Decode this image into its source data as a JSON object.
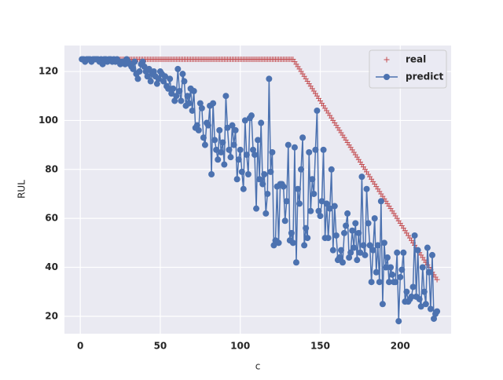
{
  "chart_data": {
    "type": "line",
    "xlabel": "c",
    "ylabel": "RUL",
    "xlim": [
      -9.9,
      231.8
    ],
    "ylim": [
      12.9,
      130.6
    ],
    "xticks": [
      0,
      50,
      100,
      150,
      200
    ],
    "yticks": [
      20,
      40,
      60,
      80,
      100,
      120
    ],
    "grid": true,
    "legend": "upper right",
    "x": [
      1,
      2,
      3,
      4,
      5,
      6,
      7,
      8,
      9,
      10,
      11,
      12,
      13,
      14,
      15,
      16,
      17,
      18,
      19,
      20,
      21,
      22,
      23,
      24,
      25,
      26,
      27,
      28,
      29,
      30,
      31,
      32,
      33,
      34,
      35,
      36,
      37,
      38,
      39,
      40,
      41,
      42,
      43,
      44,
      45,
      46,
      47,
      48,
      49,
      50,
      51,
      52,
      53,
      54,
      55,
      56,
      57,
      58,
      59,
      60,
      61,
      62,
      63,
      64,
      65,
      66,
      67,
      68,
      69,
      70,
      71,
      72,
      73,
      74,
      75,
      76,
      77,
      78,
      79,
      80,
      81,
      82,
      83,
      84,
      85,
      86,
      87,
      88,
      89,
      90,
      91,
      92,
      93,
      94,
      95,
      96,
      97,
      98,
      99,
      100,
      101,
      102,
      103,
      104,
      105,
      106,
      107,
      108,
      109,
      110,
      111,
      112,
      113,
      114,
      115,
      116,
      117,
      118,
      119,
      120,
      121,
      122,
      123,
      124,
      125,
      126,
      127,
      128,
      129,
      130,
      131,
      132,
      133,
      134,
      135,
      136,
      137,
      138,
      139,
      140,
      141,
      142,
      143,
      144,
      145,
      146,
      147,
      148,
      149,
      150,
      151,
      152,
      153,
      154,
      155,
      156,
      157,
      158,
      159,
      160,
      161,
      162,
      163,
      164,
      165,
      166,
      167,
      168,
      169,
      170,
      171,
      172,
      173,
      174,
      175,
      176,
      177,
      178,
      179,
      180,
      181,
      182,
      183,
      184,
      185,
      186,
      187,
      188,
      189,
      190,
      191,
      192,
      193,
      194,
      195,
      196,
      197,
      198,
      199,
      200,
      201,
      202,
      203,
      204,
      205,
      206,
      207,
      208,
      209,
      210,
      211,
      212,
      213,
      214,
      215,
      216,
      217,
      218,
      219,
      220,
      221,
      222,
      223
    ],
    "series": [
      {
        "name": "real",
        "color": "#c44e52",
        "marker": "+",
        "line": false,
        "values": [
          125,
          125,
          125,
          125,
          125,
          125,
          125,
          125,
          125,
          125,
          125,
          125,
          125,
          125,
          125,
          125,
          125,
          125,
          125,
          125,
          125,
          125,
          125,
          125,
          125,
          125,
          125,
          125,
          125,
          125,
          125,
          125,
          125,
          125,
          125,
          125,
          125,
          125,
          125,
          125,
          125,
          125,
          125,
          125,
          125,
          125,
          125,
          125,
          125,
          125,
          125,
          125,
          125,
          125,
          125,
          125,
          125,
          125,
          125,
          125,
          125,
          125,
          125,
          125,
          125,
          125,
          125,
          125,
          125,
          125,
          125,
          125,
          125,
          125,
          125,
          125,
          125,
          125,
          125,
          125,
          125,
          125,
          125,
          125,
          125,
          125,
          125,
          125,
          125,
          125,
          125,
          125,
          125,
          125,
          125,
          125,
          125,
          125,
          125,
          125,
          125,
          125,
          125,
          125,
          125,
          125,
          125,
          125,
          125,
          125,
          125,
          125,
          125,
          125,
          125,
          125,
          125,
          125,
          125,
          125,
          125,
          125,
          125,
          125,
          125,
          125,
          125,
          125,
          125,
          125,
          125,
          125,
          125,
          124,
          123,
          122,
          121,
          120,
          119,
          118,
          117,
          116,
          115,
          114,
          113,
          112,
          111,
          110,
          109,
          108,
          107,
          106,
          105,
          104,
          103,
          102,
          101,
          100,
          99,
          98,
          97,
          96,
          95,
          94,
          93,
          92,
          91,
          90,
          89,
          88,
          87,
          86,
          85,
          84,
          83,
          82,
          81,
          80,
          79,
          78,
          77,
          76,
          75,
          74,
          73,
          72,
          71,
          70,
          69,
          68,
          67,
          66,
          65,
          64,
          63,
          62,
          61,
          60,
          59,
          58,
          57,
          56,
          55,
          54,
          53,
          52,
          51,
          50,
          49,
          48,
          47,
          46,
          45,
          44,
          43,
          42,
          41,
          40,
          39,
          38,
          37,
          36,
          35
        ]
      },
      {
        "name": "predict",
        "color": "#4c72b0",
        "marker": "o",
        "line": true,
        "values": [
          125,
          125,
          124,
          125,
          125,
          125,
          124,
          125,
          125,
          125,
          125,
          124,
          125,
          123,
          125,
          125,
          124,
          125,
          125,
          124,
          125,
          124,
          125,
          124,
          123,
          124,
          124,
          123,
          125,
          124,
          123,
          122,
          121,
          124,
          119,
          117,
          120,
          123,
          124,
          122,
          120,
          118,
          121,
          116,
          119,
          120,
          118,
          115,
          117,
          120,
          119,
          116,
          118,
          114,
          113,
          117,
          111,
          113,
          108,
          110,
          121,
          112,
          108,
          119,
          116,
          106,
          110,
          107,
          113,
          104,
          112,
          97,
          98,
          96,
          107,
          105,
          93,
          90,
          99,
          98,
          106,
          78,
          107,
          92,
          88,
          84,
          96,
          87,
          91,
          82,
          110,
          97,
          88,
          85,
          98,
          90,
          96,
          76,
          84,
          88,
          79,
          72,
          100,
          86,
          78,
          101,
          102,
          88,
          86,
          64,
          92,
          76,
          99,
          74,
          78,
          62,
          70,
          117,
          79,
          87,
          49,
          51,
          73,
          50,
          74,
          74,
          73,
          59,
          67,
          90,
          51,
          54,
          50,
          89,
          42,
          72,
          66,
          80,
          93,
          49,
          56,
          52,
          87,
          63,
          76,
          70,
          88,
          104,
          63,
          61,
          67,
          88,
          52,
          66,
          52,
          64,
          80,
          47,
          65,
          53,
          43,
          44,
          47,
          42,
          54,
          57,
          62,
          44,
          46,
          55,
          48,
          58,
          43,
          54,
          46,
          77,
          49,
          45,
          72,
          58,
          49,
          34,
          47,
          60,
          38,
          49,
          34,
          67,
          25,
          50,
          40,
          44,
          34,
          40,
          37,
          34,
          34,
          46,
          18,
          36,
          39,
          46,
          26,
          30,
          26,
          27,
          28,
          32,
          53,
          28,
          47,
          27,
          24,
          40,
          30,
          25,
          48,
          38,
          23,
          45,
          19,
          21,
          22
        ]
      }
    ]
  }
}
